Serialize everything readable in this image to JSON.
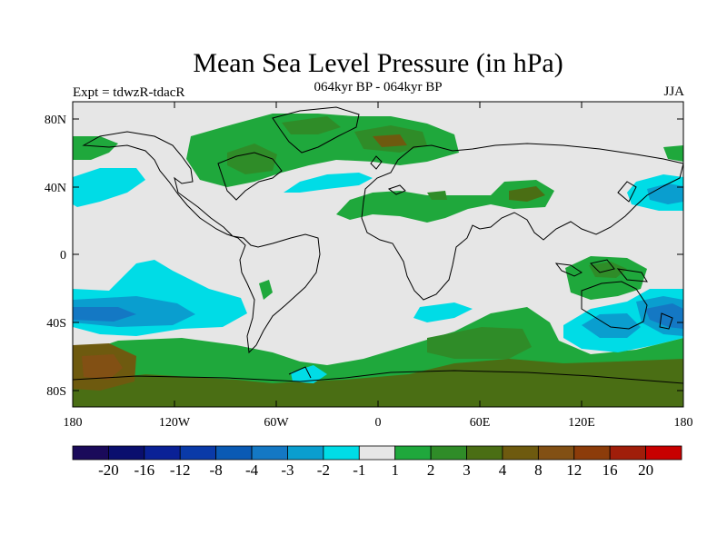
{
  "title": "Mean Sea Level Pressure (in hPa)",
  "subtitle_left": "Expt = tdwzR-tdacR",
  "subtitle_center": "064kyr BP - 064kyr BP",
  "subtitle_right": "JJA",
  "lon_ticks": [
    "180",
    "120W",
    "60W",
    "0",
    "60E",
    "120E",
    "180"
  ],
  "lat_ticks": [
    "80N",
    "40N",
    "0",
    "40S",
    "80S"
  ],
  "colorbar": {
    "colors": [
      "#1a0a5a",
      "#0a0f6e",
      "#0a2196",
      "#0a3aa8",
      "#0a5ab4",
      "#1478c4",
      "#0a9ecf",
      "#00dce6",
      "#e6e6e6",
      "#1fa83c",
      "#2f8c28",
      "#4a6e14",
      "#6e5a0f",
      "#825014",
      "#8c3c0a",
      "#a01e0a",
      "#c80000"
    ],
    "labels": [
      "-20",
      "-16",
      "-12",
      "-8",
      "-4",
      "-3",
      "-2",
      "-1",
      "1",
      "2",
      "3",
      "4",
      "8",
      "12",
      "16",
      "20"
    ]
  },
  "colors": {
    "ocean_background": "#e6e6e6",
    "coastline": "#000000"
  }
}
